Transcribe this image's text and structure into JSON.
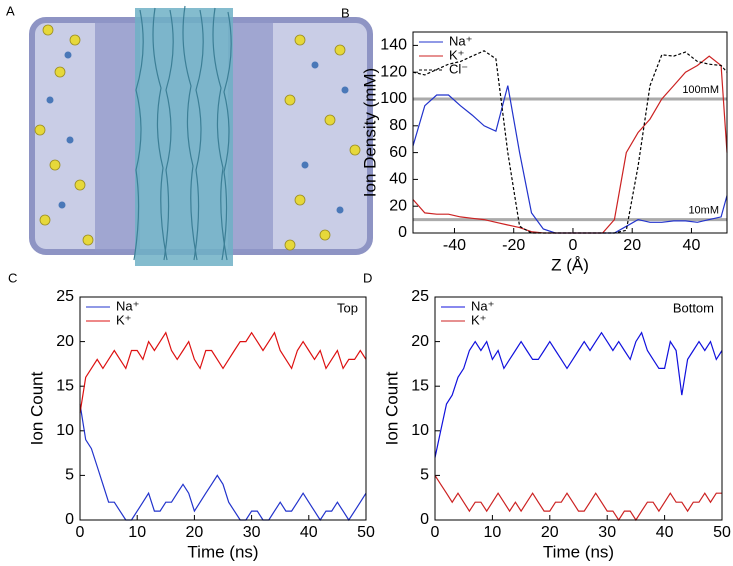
{
  "image_panel": {
    "panel_label": "A"
  },
  "chart_data": [
    {
      "type": "line",
      "panel_label": "B",
      "xlabel": "Z (Å)",
      "ylabel": "Ion Density (mM)",
      "legend": "upper left",
      "x": [
        -54,
        -50,
        -46,
        -42,
        -38,
        -34,
        -30,
        -26,
        -22,
        -18,
        -14,
        -10,
        -6,
        -2,
        2,
        6,
        10,
        14,
        18,
        22,
        26,
        30,
        34,
        38,
        42,
        46,
        50,
        52
      ],
      "series": [
        {
          "name": "Na⁺",
          "color": "#2233cc",
          "style": "solid",
          "values": [
            65,
            95,
            103,
            103,
            95,
            88,
            80,
            76,
            110,
            60,
            15,
            3,
            0,
            0,
            0,
            0,
            0,
            0,
            5,
            10,
            8,
            8,
            9,
            9,
            8,
            10,
            12,
            28
          ]
        },
        {
          "name": "K⁺",
          "color": "#cc2222",
          "style": "solid",
          "values": [
            25,
            15,
            14,
            14,
            12,
            11,
            10,
            8,
            6,
            4,
            1,
            0,
            0,
            0,
            0,
            0,
            0,
            10,
            60,
            75,
            85,
            100,
            110,
            120,
            125,
            132,
            125,
            60
          ]
        },
        {
          "name": "Cl⁻",
          "color": "#000000",
          "style": "dashed",
          "values": [
            120,
            118,
            122,
            126,
            128,
            132,
            136,
            130,
            60,
            5,
            0,
            0,
            0,
            0,
            0,
            0,
            0,
            0,
            2,
            50,
            110,
            133,
            132,
            135,
            128,
            126,
            125,
            120
          ]
        }
      ],
      "xlim": [
        -54,
        52
      ],
      "ylim": [
        0,
        150
      ],
      "xticks": [
        -40,
        -20,
        0,
        20,
        40
      ],
      "yticks": [
        0,
        20,
        40,
        60,
        80,
        100,
        120,
        140
      ],
      "reference_lines": [
        {
          "value": 100,
          "label": "100mM"
        },
        {
          "value": 10,
          "label": "10mM"
        }
      ]
    },
    {
      "type": "line",
      "panel_label": "C",
      "xlabel": "Time (ns)",
      "ylabel": "Ion Count",
      "legend": "upper left",
      "annotation": "Top",
      "x": [
        0,
        1,
        2,
        3,
        4,
        5,
        6,
        7,
        8,
        9,
        10,
        11,
        12,
        13,
        14,
        15,
        16,
        17,
        18,
        19,
        20,
        21,
        22,
        23,
        24,
        25,
        26,
        27,
        28,
        29,
        30,
        31,
        32,
        33,
        34,
        35,
        36,
        37,
        38,
        39,
        40,
        41,
        42,
        43,
        44,
        45,
        46,
        47,
        48,
        49,
        50
      ],
      "series": [
        {
          "name": "Na⁺",
          "color": "#2233cc",
          "style": "solid",
          "values": [
            13,
            9,
            8,
            6,
            4,
            2,
            2,
            1,
            0,
            0,
            1,
            2,
            3,
            1,
            1,
            2,
            2,
            3,
            4,
            3,
            1,
            2,
            3,
            4,
            5,
            4,
            2,
            1,
            0,
            0,
            1,
            1,
            0,
            0,
            1,
            2,
            1,
            1,
            2,
            3,
            2,
            1,
            0,
            1,
            1,
            2,
            1,
            0,
            1,
            2,
            3
          ]
        },
        {
          "name": "K⁺",
          "color": "#dd1111",
          "style": "solid",
          "values": [
            12,
            16,
            17,
            18,
            17,
            18,
            19,
            18,
            17,
            19,
            19,
            18,
            20,
            19,
            20,
            21,
            19,
            18,
            19,
            20,
            18,
            17,
            19,
            19,
            18,
            17,
            18,
            19,
            20,
            20,
            21,
            20,
            19,
            20,
            21,
            19,
            18,
            17,
            19,
            20,
            19,
            18,
            19,
            17,
            18,
            19,
            17,
            18,
            18,
            19,
            18
          ]
        }
      ],
      "xlim": [
        0,
        50
      ],
      "ylim": [
        0,
        25
      ],
      "xticks": [
        0,
        10,
        20,
        30,
        40,
        50
      ],
      "yticks": [
        0,
        5,
        10,
        15,
        20,
        25
      ]
    },
    {
      "type": "line",
      "panel_label": "D",
      "xlabel": "Time (ns)",
      "ylabel": "Ion Count",
      "legend": "upper left",
      "annotation": "Bottom",
      "x": [
        0,
        1,
        2,
        3,
        4,
        5,
        6,
        7,
        8,
        9,
        10,
        11,
        12,
        13,
        14,
        15,
        16,
        17,
        18,
        19,
        20,
        21,
        22,
        23,
        24,
        25,
        26,
        27,
        28,
        29,
        30,
        31,
        32,
        33,
        34,
        35,
        36,
        37,
        38,
        39,
        40,
        41,
        42,
        43,
        44,
        45,
        46,
        47,
        48,
        49,
        50
      ],
      "series": [
        {
          "name": "Na⁺",
          "color": "#1111dd",
          "style": "solid",
          "values": [
            7,
            10,
            13,
            14,
            16,
            17,
            19,
            20,
            19,
            20,
            18,
            19,
            17,
            18,
            19,
            20,
            19,
            18,
            18,
            19,
            20,
            19,
            18,
            17,
            18,
            19,
            20,
            19,
            20,
            21,
            20,
            19,
            20,
            19,
            18,
            20,
            21,
            19,
            18,
            17,
            17,
            20,
            19,
            14,
            18,
            19,
            20,
            19,
            20,
            18,
            19
          ]
        },
        {
          "name": "K⁺",
          "color": "#cc2222",
          "style": "solid",
          "values": [
            5,
            4,
            3,
            2,
            3,
            2,
            1,
            2,
            2,
            1,
            2,
            3,
            2,
            1,
            2,
            1,
            2,
            3,
            2,
            1,
            1,
            2,
            2,
            3,
            2,
            1,
            1,
            2,
            3,
            2,
            1,
            1,
            0,
            1,
            1,
            0,
            1,
            2,
            2,
            1,
            2,
            3,
            2,
            2,
            1,
            2,
            2,
            3,
            2,
            3,
            3
          ]
        }
      ],
      "xlim": [
        0,
        50
      ],
      "ylim": [
        0,
        25
      ],
      "xticks": [
        0,
        10,
        20,
        30,
        40,
        50
      ],
      "yticks": [
        0,
        5,
        10,
        15,
        20,
        25
      ]
    }
  ]
}
